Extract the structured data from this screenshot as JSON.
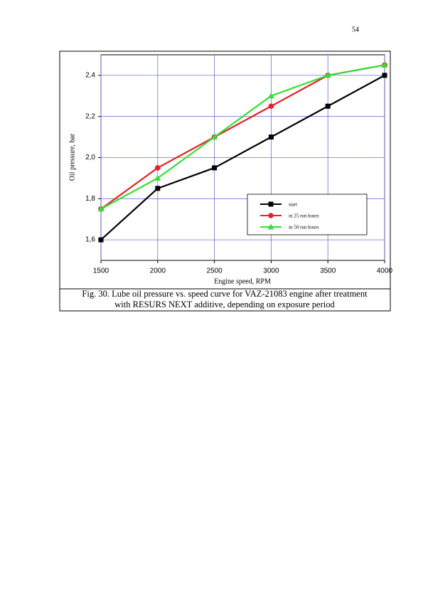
{
  "page_number": "54",
  "chart_data": {
    "type": "line",
    "x_label": "Engine speed, RPM",
    "y_label": "Oil pressure, bar",
    "x": [
      1500,
      2000,
      2500,
      3000,
      3500,
      4000
    ],
    "series": [
      {
        "name": "start",
        "color": "#000000",
        "marker": "square",
        "values": [
          1.6,
          1.85,
          1.95,
          2.1,
          2.25,
          2.4
        ]
      },
      {
        "name": "in 25 run hours",
        "color": "#e8202a",
        "marker": "circle",
        "values": [
          1.75,
          1.95,
          2.1,
          2.25,
          2.4,
          2.45
        ]
      },
      {
        "name": "in 50 run hours",
        "color": "#33e033",
        "marker": "triangle",
        "values": [
          1.75,
          1.9,
          2.1,
          2.3,
          2.4,
          2.45
        ]
      }
    ],
    "xlim": [
      1500,
      4000
    ],
    "xticks": [
      1500,
      2000,
      2500,
      3000,
      3500,
      4000
    ],
    "ylim": [
      1.5,
      2.5
    ],
    "yticks": [
      {
        "value": 1.6,
        "label": "1,6"
      },
      {
        "value": 1.8,
        "label": "1,8"
      },
      {
        "value": 2.0,
        "label": "2,0"
      },
      {
        "value": 2.2,
        "label": "2,2"
      },
      {
        "value": 2.4,
        "label": "2,4"
      }
    ],
    "grid": true
  },
  "caption": [
    "Fig. 30. Lube oil pressure vs. speed curve for VAZ-21083 engine after treatment",
    "with RESURS NEXT additive, depending on exposure period"
  ]
}
